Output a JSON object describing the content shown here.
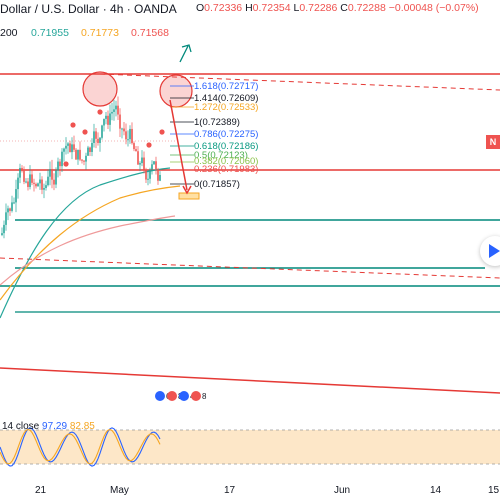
{
  "header": {
    "title": "Dollar / U.S. Dollar · 4h · OANDA",
    "ohlc": {
      "o_label": "O",
      "o": "0.72336",
      "h_label": "H",
      "h": "0.72354",
      "l_label": "L",
      "l": "0.72286",
      "c_label": "C",
      "c": "0.72288",
      "change": "−0.00048 (−0.07%)"
    }
  },
  "moving_averages": {
    "label": "200",
    "values": [
      "0.71955",
      "0.71773",
      "0.71568"
    ],
    "colors": [
      "#26a69a",
      "#f5a623",
      "#ef5350"
    ]
  },
  "fib_levels": [
    {
      "label": "1.618(0.72717)",
      "color": "#2962ff"
    },
    {
      "label": "1.414(0.72609)",
      "color": "#131722"
    },
    {
      "label": "1.272(0.72533)",
      "color": "#f5a623"
    },
    {
      "label": "1(0.72389)",
      "color": "#131722"
    },
    {
      "label": "0.786(0.72275)",
      "color": "#2962ff"
    },
    {
      "label": "0.618(0.72186)",
      "color": "#089981"
    },
    {
      "label": "0.5(0.72123)",
      "color": "#4caf50"
    },
    {
      "label": "0.382(0.72060)",
      "color": "#8bc34a"
    },
    {
      "label": "0.236(0.71983)",
      "color": "#ef5350"
    },
    {
      "label": "0(0.71857)",
      "color": "#131722"
    }
  ],
  "price_badge": "N",
  "rsi": {
    "label": "14 close",
    "v1": "97.29",
    "v2": "82.85",
    "colors": [
      "#2962ff",
      "#f5a623"
    ]
  },
  "event_icons": [
    "6",
    "8",
    "4",
    "8"
  ],
  "x_axis": [
    "21",
    "May",
    "17",
    "Jun",
    "14",
    "15"
  ],
  "colors": {
    "up": "#26a69a",
    "down": "#ef5350",
    "resistance": "#e53935",
    "support": "#00897b",
    "rsi_band": "#fde7c8"
  },
  "controls": {
    "play_label": "Go to realtime"
  }
}
